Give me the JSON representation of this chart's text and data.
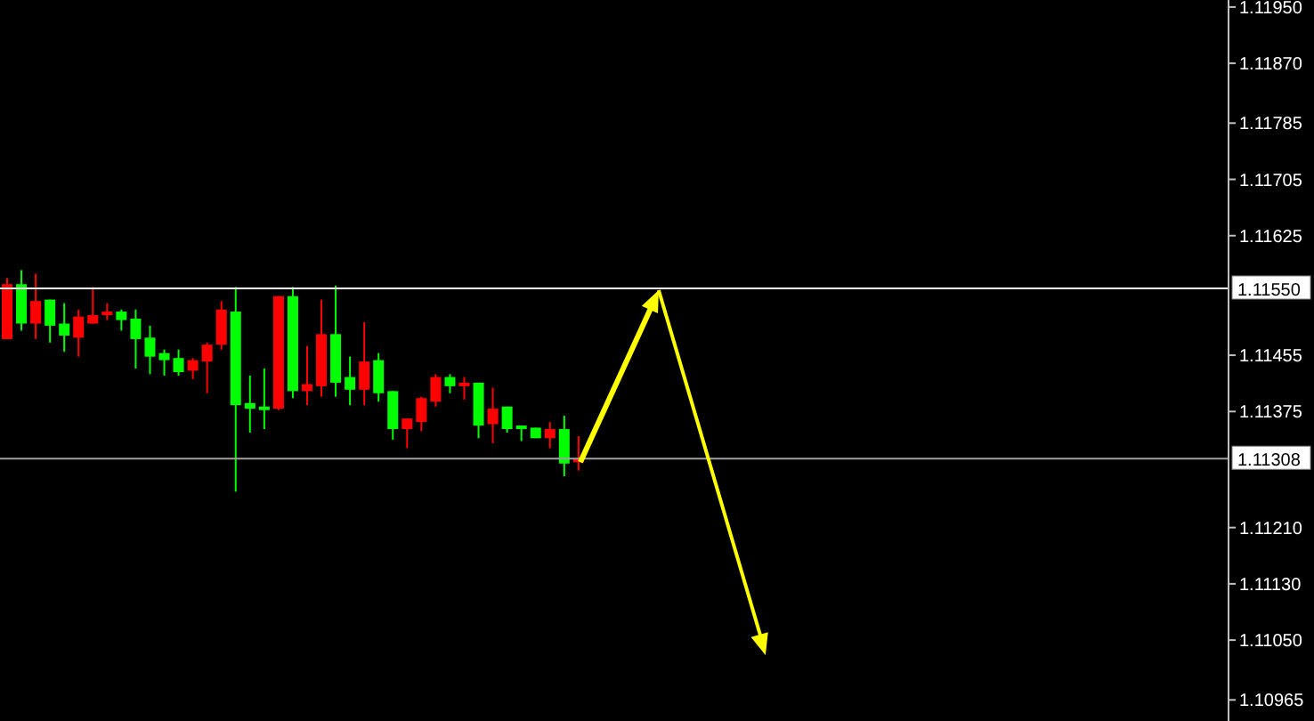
{
  "chart_data": {
    "type": "candlestick",
    "categories": [
      null,
      null,
      null,
      null,
      null,
      null,
      null,
      null,
      null,
      null,
      null,
      null,
      null,
      null,
      null,
      null,
      null,
      null,
      null,
      null,
      null,
      null,
      null,
      null,
      null,
      null,
      null,
      null,
      null,
      null,
      null,
      null,
      null,
      null,
      null,
      null,
      null,
      null,
      null,
      null,
      null,
      null,
      null,
      null,
      null,
      null,
      null,
      null,
      null,
      null,
      null,
      null,
      null,
      null,
      null,
      null,
      null,
      null,
      null,
      null,
      null,
      null,
      null,
      null,
      null,
      null,
      null,
      null,
      null,
      null,
      null,
      null,
      null,
      null,
      null,
      null,
      null,
      null,
      null,
      null,
      null,
      null,
      null,
      null,
      null,
      null
    ],
    "ohlc": [
      [
        1.11556,
        1.11565,
        1.11478,
        1.11478
      ],
      [
        1.115,
        1.11576,
        1.1149,
        1.11556
      ],
      [
        1.11532,
        1.11571,
        1.11478,
        1.115
      ],
      [
        1.11497,
        1.11534,
        1.11473,
        1.11534
      ],
      [
        1.11483,
        1.11529,
        1.1146,
        1.115
      ],
      [
        1.1151,
        1.1152,
        1.11453,
        1.1148
      ],
      [
        1.11512,
        1.11552,
        1.115,
        1.115
      ],
      [
        1.11517,
        1.11529,
        1.11505,
        1.11512
      ],
      [
        1.11505,
        1.1152,
        1.1149,
        1.11517
      ],
      [
        1.11478,
        1.1152,
        1.11436,
        1.11507
      ],
      [
        1.11453,
        1.11497,
        1.11428,
        1.1148
      ],
      [
        1.11448,
        1.11463,
        1.11426,
        1.11458
      ],
      [
        1.11431,
        1.11463,
        1.11426,
        1.11451
      ],
      [
        1.11448,
        1.11451,
        1.11421,
        1.11433
      ],
      [
        1.1147,
        1.11473,
        1.11401,
        1.11446
      ],
      [
        1.1152,
        1.11532,
        1.11463,
        1.1147
      ],
      [
        1.11384,
        1.11552,
        1.11261,
        1.11517
      ],
      [
        1.11379,
        1.11426,
        1.11345,
        1.11387
      ],
      [
        1.11377,
        1.11436,
        1.1135,
        1.11382
      ],
      [
        1.11539,
        1.11539,
        1.11377,
        1.11379
      ],
      [
        1.11404,
        1.11552,
        1.11394,
        1.11539
      ],
      [
        1.11414,
        1.11468,
        1.11384,
        1.11404
      ],
      [
        1.11485,
        1.11534,
        1.11396,
        1.11411
      ],
      [
        1.11416,
        1.11554,
        1.11396,
        1.11485
      ],
      [
        1.11406,
        1.11453,
        1.11384,
        1.11424
      ],
      [
        1.11446,
        1.11502,
        1.11384,
        1.11406
      ],
      [
        1.11401,
        1.11458,
        1.11389,
        1.11448
      ],
      [
        1.1135,
        1.11404,
        1.11335,
        1.11404
      ],
      [
        1.11365,
        1.11365,
        1.11323,
        1.1135
      ],
      [
        1.11394,
        1.11396,
        1.11347,
        1.1136
      ],
      [
        1.11424,
        1.11428,
        1.11382,
        1.11389
      ],
      [
        1.11411,
        1.11428,
        1.11401,
        1.11424
      ],
      [
        1.11416,
        1.11424,
        1.11392,
        1.11411
      ],
      [
        1.11355,
        1.11416,
        1.11337,
        1.11416
      ],
      [
        1.11379,
        1.11409,
        1.1133,
        1.11357
      ],
      [
        1.1135,
        1.11382,
        1.11345,
        1.11382
      ],
      [
        1.1135,
        1.11355,
        1.11333,
        1.11355
      ],
      [
        1.11337,
        1.11352,
        1.11337,
        1.11352
      ],
      [
        1.1135,
        1.1136,
        1.11323,
        1.11337
      ],
      [
        1.11301,
        1.11369,
        1.11283,
        1.1135
      ],
      [
        1.11308,
        1.1134,
        1.11291,
        1.11303
      ],
      null,
      null,
      null,
      null,
      null,
      null,
      null,
      null,
      null,
      null,
      null,
      null,
      null,
      null,
      null,
      null,
      null,
      null,
      null,
      null,
      null,
      null,
      null,
      null,
      null,
      null,
      null,
      null,
      null,
      null,
      null,
      null,
      null,
      null,
      null,
      null,
      null,
      null,
      null,
      null,
      null,
      null,
      null,
      null,
      null
    ],
    "colors": [
      "#ff0000",
      "#00ff00",
      "#ff0000",
      "#00ff00",
      "#00ff00",
      "#ff0000",
      "#ff0000",
      "#ff0000",
      "#00ff00",
      "#00ff00",
      "#00ff00",
      "#00ff00",
      "#00ff00",
      "#ff0000",
      "#ff0000",
      "#ff0000",
      "#00ff00",
      "#00ff00",
      "#00ff00",
      "#ff0000",
      "#00ff00",
      "#ff0000",
      "#ff0000",
      "#00ff00",
      "#00ff00",
      "#ff0000",
      "#00ff00",
      "#00ff00",
      "#ff0000",
      "#ff0000",
      "#ff0000",
      "#00ff00",
      "#ff0000",
      "#00ff00",
      "#ff0000",
      "#00ff00",
      "#00ff00",
      "#00ff00",
      "#ff0000",
      "#00ff00",
      "#ff0000",
      null,
      null,
      null,
      null,
      null,
      null,
      null,
      null,
      null,
      null,
      null,
      null,
      null,
      null,
      null,
      null,
      null,
      null,
      null,
      null,
      null,
      null,
      null,
      null,
      null,
      null,
      null,
      null,
      null,
      null,
      null,
      null,
      null,
      null,
      null,
      null,
      null,
      null,
      null,
      null,
      null,
      null,
      null,
      null,
      null
    ],
    "ylim": [
      1.10935,
      1.1196
    ],
    "yticks": [
      {
        "value": 1.1195,
        "label": "1.11950"
      },
      {
        "value": 1.1187,
        "label": "1.11870"
      },
      {
        "value": 1.11785,
        "label": "1.11785"
      },
      {
        "value": 1.11705,
        "label": "1.11705"
      },
      {
        "value": 1.11625,
        "label": "1.11625"
      },
      {
        "value": 1.11455,
        "label": "1.11455"
      },
      {
        "value": 1.11375,
        "label": "1.11375"
      },
      {
        "value": 1.1121,
        "label": "1.11210"
      },
      {
        "value": 1.1113,
        "label": "1.11130"
      },
      {
        "value": 1.1105,
        "label": "1.11050"
      },
      {
        "value": 1.10965,
        "label": "1.10965"
      }
    ],
    "ref_lines": [
      {
        "axis": "y",
        "value": 1.1155,
        "label": "1.11550",
        "color": "#ffffff"
      },
      {
        "axis": "y",
        "value": 1.11308,
        "label": "1.11308",
        "color": "#a0a0a0"
      }
    ],
    "tick_labels": "y"
  }
}
